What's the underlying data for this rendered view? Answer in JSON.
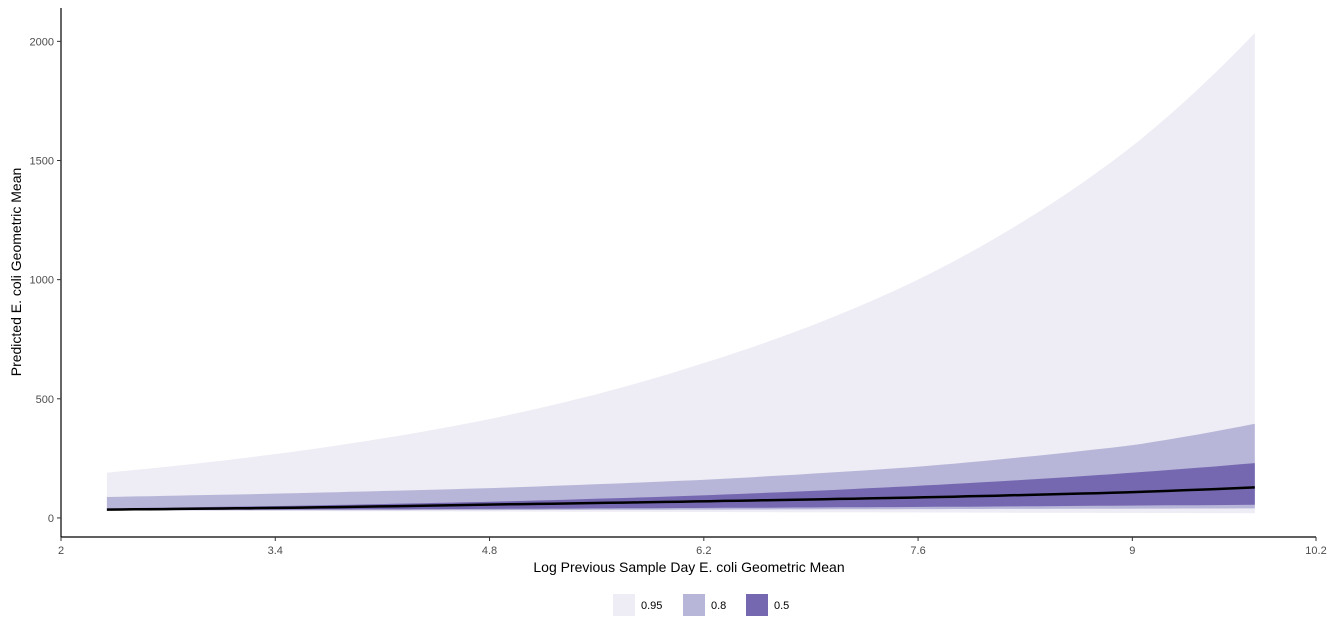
{
  "chart_data": {
    "type": "area",
    "title": "",
    "xlabel": "Log Previous Sample Day E. coli Geometric Mean",
    "ylabel": "Predicted E. coli Geometric Mean",
    "xlim": [
      2,
      10.2
    ],
    "ylim": [
      -80,
      2140
    ],
    "x_ticks": [
      2,
      3.4,
      4.8,
      6.2,
      7.6,
      9,
      10.2
    ],
    "x_tick_labels": [
      "2",
      "3.4",
      "4.8",
      "6.2",
      "7.6",
      "9",
      "10.2"
    ],
    "y_ticks": [
      0,
      500,
      1000,
      1500,
      2000
    ],
    "y_tick_labels": [
      "0",
      "500",
      "1000",
      "1500",
      "2000"
    ],
    "grid": false,
    "legend_position": "bottom",
    "x": [
      2.3,
      3.4,
      4.8,
      6.2,
      7.6,
      9.0,
      9.8
    ],
    "bands": [
      {
        "level": "0.95",
        "color": "#eeecf4",
        "lower": [
          31,
          29,
          27,
          25,
          23,
          21,
          20
        ],
        "upper": [
          190,
          268,
          415,
          650,
          1000,
          1560,
          2035
        ]
      },
      {
        "level": "0.8",
        "color": "#b7b6d8",
        "lower": [
          32,
          32,
          33,
          35,
          37,
          39,
          40
        ],
        "upper": [
          88,
          102,
          125,
          160,
          215,
          305,
          395
        ]
      },
      {
        "level": "0.5",
        "color": "#7568b1",
        "lower": [
          33,
          35,
          38,
          42,
          46,
          52,
          55
        ],
        "upper": [
          40,
          50,
          68,
          95,
          135,
          190,
          230
        ]
      }
    ],
    "line": {
      "name": "",
      "color": "#000000",
      "values": [
        35,
        42,
        56,
        70,
        86,
        108,
        128
      ]
    },
    "legend": [
      {
        "label": "0.95",
        "color": "#eeecf4"
      },
      {
        "label": "0.8",
        "color": "#b7b6d8"
      },
      {
        "label": "0.5",
        "color": "#7568b1"
      }
    ]
  }
}
